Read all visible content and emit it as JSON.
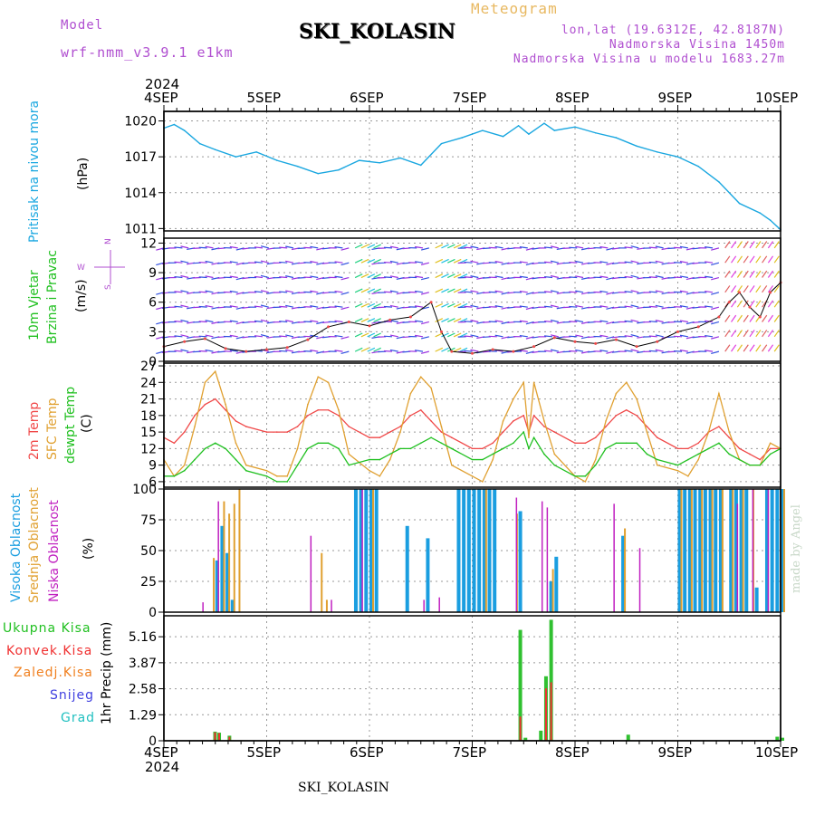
{
  "header": {
    "model_label": "Model",
    "model_name": "wrf-nmm_v3.9.1 e1km",
    "station": "SKI_KOLASIN",
    "meteogram_label": "Meteogram",
    "lonlat": "lon,lat (19.6312E, 42.8187N)",
    "altitude": "Nadmorska Visina 1450m",
    "model_altitude": "Nadmorska Visina u modelu 1683.27m",
    "year_top": "2024",
    "year_bottom": "2024",
    "footer_station": "SKI_KOLASIN",
    "watermark": "made by Angel"
  },
  "dates": [
    "4SEP",
    "5SEP",
    "6SEP",
    "7SEP",
    "8SEP",
    "9SEP",
    "10SEP"
  ],
  "colors": {
    "pressure": "#1aa7e0",
    "temp2m": "#f04848",
    "sfctemp": "#e0a030",
    "dewpt": "#20c020",
    "high_cloud": "#1a9ee0",
    "mid_cloud": "#e0a030",
    "low_cloud": "#c020c0",
    "precip_total": "#30c030",
    "precip_conv": "#f03030",
    "precip_frozen": "#f08020",
    "snow": "#4040e0",
    "hail": "#20c0c0"
  },
  "panels": {
    "pressure": {
      "ylabel1": "Pritisak na nivou mora",
      "ylabel2": "(hPa)"
    },
    "wind": {
      "ylabel1": "10m Vjetar",
      "ylabel2": "Brzina i Pravac",
      "ylabel3": "(m/s)",
      "compass_w": "W",
      "compass_e": "E",
      "compass_n": "N",
      "compass_s": "S"
    },
    "temp": {
      "ylabel1": "2m Temp",
      "ylabel2": "SFC Temp",
      "ylabel3": "dewpt Temp",
      "ylabel4": "(C)"
    },
    "cloud": {
      "ylabel1": "Visoka Oblacnost",
      "ylabel2": "Srednja Oblacnost",
      "ylabel3": "Niska Oblacnost",
      "ylabel4": "(%)"
    },
    "precip": {
      "legend": [
        "Ukupna Kisa",
        "Konvek.Kisa",
        "Zaledj.Kisa",
        "Snijeg",
        "Grad"
      ],
      "ylabel": "1hr Precip (mm)"
    }
  },
  "chart_data": [
    {
      "type": "line",
      "title": "Pritisak na nivou mora",
      "ylabel": "(hPa)",
      "ylim": [
        1010.8,
        1020.8
      ],
      "yticks": [
        "1020",
        "1017",
        "1014",
        "1011"
      ],
      "x_unit": "days since 4SEP 00",
      "x": [
        0,
        0.1,
        0.2,
        0.35,
        0.5,
        0.7,
        0.9,
        1.1,
        1.3,
        1.5,
        1.7,
        1.9,
        2.1,
        2.3,
        2.5,
        2.7,
        2.9,
        3.1,
        3.3,
        3.45,
        3.55,
        3.7,
        3.8,
        4.0,
        4.2,
        4.4,
        4.6,
        4.8,
        5.0,
        5.2,
        5.4,
        5.6,
        5.8,
        5.9,
        6.0
      ],
      "series": [
        {
          "name": "Pritisak",
          "values": [
            1019.4,
            1019.7,
            1019.2,
            1018.1,
            1017.6,
            1017.0,
            1017.4,
            1016.7,
            1016.2,
            1015.6,
            1015.9,
            1016.7,
            1016.5,
            1016.9,
            1016.3,
            1018.1,
            1018.6,
            1019.2,
            1018.7,
            1019.6,
            1018.9,
            1019.8,
            1019.2,
            1019.5,
            1019.0,
            1018.6,
            1017.9,
            1017.4,
            1017.0,
            1016.2,
            1014.9,
            1013.1,
            1012.3,
            1011.7,
            1010.9
          ]
        }
      ]
    },
    {
      "type": "line",
      "title": "10m Vjetar Brzina i Pravac",
      "ylabel": "(m/s)",
      "ylim": [
        0,
        12.5
      ],
      "yticks": [
        "12",
        "9",
        "6",
        "3",
        "0"
      ],
      "x": [
        0,
        0.2,
        0.4,
        0.6,
        0.8,
        1.0,
        1.2,
        1.4,
        1.6,
        1.8,
        2.0,
        2.2,
        2.4,
        2.6,
        2.7,
        2.8,
        3.0,
        3.2,
        3.4,
        3.6,
        3.8,
        4.0,
        4.2,
        4.4,
        4.6,
        4.8,
        5.0,
        5.2,
        5.4,
        5.5,
        5.6,
        5.7,
        5.8,
        5.9,
        6.0
      ],
      "series": [
        {
          "name": "Brzina",
          "values": [
            1.5,
            2.0,
            2.3,
            1.3,
            1.0,
            1.2,
            1.4,
            2.2,
            3.5,
            4.0,
            3.6,
            4.2,
            4.5,
            6.0,
            3.0,
            1.0,
            0.8,
            1.2,
            1.0,
            1.5,
            2.4,
            2.0,
            1.8,
            2.2,
            1.5,
            2.0,
            3.0,
            3.5,
            4.5,
            6.0,
            7.0,
            5.5,
            4.5,
            7.0,
            8.0
          ]
        }
      ]
    },
    {
      "type": "line",
      "title": "2m Temp / SFC Temp / dewpt Temp",
      "ylabel": "(C)",
      "ylim": [
        5,
        27.5
      ],
      "yticks": [
        "27",
        "24",
        "21",
        "18",
        "15",
        "12",
        "9",
        "6"
      ],
      "x": [
        0,
        0.1,
        0.2,
        0.3,
        0.4,
        0.5,
        0.6,
        0.7,
        0.8,
        1.0,
        1.1,
        1.2,
        1.3,
        1.4,
        1.5,
        1.6,
        1.7,
        1.8,
        2.0,
        2.1,
        2.2,
        2.3,
        2.4,
        2.5,
        2.6,
        2.7,
        2.8,
        3.0,
        3.1,
        3.2,
        3.3,
        3.4,
        3.5,
        3.55,
        3.6,
        3.7,
        3.8,
        4.0,
        4.1,
        4.2,
        4.3,
        4.4,
        4.5,
        4.6,
        4.7,
        4.8,
        5.0,
        5.1,
        5.2,
        5.3,
        5.4,
        5.5,
        5.6,
        5.7,
        5.8,
        5.9,
        6.0
      ],
      "series": [
        {
          "name": "2m Temp",
          "values": [
            14,
            13,
            15,
            18,
            20,
            21,
            19,
            17,
            16,
            15,
            15,
            15,
            16,
            18,
            19,
            19,
            18,
            16,
            14,
            14,
            15,
            16,
            18,
            19,
            17,
            15,
            14,
            12,
            12,
            13,
            15,
            17,
            18,
            15,
            18,
            16,
            15,
            13,
            13,
            14,
            16,
            18,
            19,
            18,
            16,
            14,
            12,
            12,
            13,
            15,
            16,
            14,
            12,
            11,
            10,
            12,
            12
          ]
        },
        {
          "name": "SFC Temp",
          "values": [
            10,
            7,
            9,
            16,
            24,
            26,
            20,
            13,
            9,
            8,
            7,
            7,
            12,
            20,
            25,
            24,
            19,
            11,
            8,
            7,
            10,
            15,
            22,
            25,
            23,
            16,
            9,
            7,
            6,
            10,
            17,
            21,
            24,
            14,
            24,
            17,
            11,
            7,
            6,
            10,
            17,
            22,
            24,
            21,
            15,
            9,
            8,
            7,
            10,
            15,
            22,
            15,
            10,
            9,
            9,
            13,
            12
          ]
        },
        {
          "name": "dewpt Temp",
          "values": [
            7,
            7,
            8,
            10,
            12,
            13,
            12,
            10,
            8,
            7,
            6,
            6,
            9,
            12,
            13,
            13,
            12,
            9,
            10,
            10,
            11,
            12,
            12,
            13,
            14,
            13,
            12,
            10,
            10,
            11,
            12,
            13,
            15,
            12,
            14,
            11,
            9,
            7,
            7,
            9,
            12,
            13,
            13,
            13,
            11,
            10,
            9,
            10,
            11,
            12,
            13,
            11,
            10,
            9,
            9,
            11,
            12
          ]
        }
      ]
    },
    {
      "type": "bar",
      "title": "Visoka / Srednja / Niska Oblacnost",
      "ylabel": "(%)",
      "ylim": [
        0,
        100
      ],
      "yticks": [
        "100",
        "75",
        "50",
        "25",
        "0"
      ],
      "series": [
        {
          "name": "Visoka Oblacnost",
          "x": [
            0.5,
            0.55,
            0.6,
            0.65,
            1.85,
            1.9,
            1.95,
            2.0,
            2.05,
            2.35,
            2.55,
            2.85,
            2.9,
            2.95,
            3.0,
            3.05,
            3.1,
            3.15,
            3.2,
            3.45,
            3.75,
            3.8,
            4.45,
            5.0,
            5.05,
            5.1,
            5.15,
            5.2,
            5.25,
            5.3,
            5.35,
            5.4,
            5.5,
            5.55,
            5.6,
            5.65,
            5.75,
            5.85,
            5.9,
            5.95,
            6.0
          ],
          "values": [
            42,
            70,
            48,
            10,
            100,
            100,
            100,
            100,
            100,
            70,
            60,
            100,
            100,
            100,
            100,
            100,
            100,
            100,
            100,
            82,
            25,
            45,
            62,
            100,
            100,
            100,
            100,
            100,
            100,
            100,
            100,
            100,
            100,
            100,
            100,
            100,
            20,
            100,
            100,
            100,
            100
          ]
        },
        {
          "name": "Srednja Oblacnost",
          "x": [
            0.45,
            0.55,
            0.6,
            0.65,
            0.7,
            1.5,
            1.55,
            2.0,
            3.1,
            3.4,
            3.75,
            4.45,
            5.0,
            5.1,
            5.2,
            5.3,
            5.4,
            5.5,
            5.6,
            5.7,
            6.0
          ],
          "values": [
            44,
            90,
            80,
            88,
            100,
            48,
            10,
            100,
            100,
            80,
            35,
            68,
            100,
            100,
            100,
            100,
            100,
            100,
            100,
            100,
            100
          ]
        },
        {
          "name": "Niska Oblacnost",
          "x": [
            0.4,
            0.55,
            1.45,
            1.65,
            1.95,
            2.55,
            2.7,
            3.45,
            3.7,
            3.75,
            4.4,
            4.65,
            5.6,
            5.75,
            5.9
          ],
          "values": [
            8,
            90,
            62,
            10,
            100,
            10,
            12,
            93,
            90,
            85,
            88,
            52,
            88,
            100,
            100
          ]
        }
      ]
    },
    {
      "type": "bar",
      "title": "1hr Precip",
      "ylabel": "(mm)",
      "ylim": [
        0,
        6.2
      ],
      "yticks": [
        "5.16",
        "3.87",
        "2.58",
        "1.29",
        "0"
      ],
      "series": [
        {
          "name": "Ukupna Kisa",
          "x": [
            0.48,
            0.52,
            0.62,
            3.45,
            3.5,
            3.65,
            3.7,
            3.75,
            4.5,
            5.95,
            6.0
          ],
          "values": [
            0.45,
            0.4,
            0.25,
            5.5,
            0.15,
            0.5,
            3.2,
            6.0,
            0.3,
            0.2,
            0.15
          ]
        },
        {
          "name": "Konvek.Kisa",
          "x": [
            0.48,
            0.52,
            0.62,
            3.45,
            3.7,
            3.75
          ],
          "values": [
            0.42,
            0.38,
            0.2,
            1.2,
            2.6,
            2.9
          ]
        }
      ]
    }
  ]
}
